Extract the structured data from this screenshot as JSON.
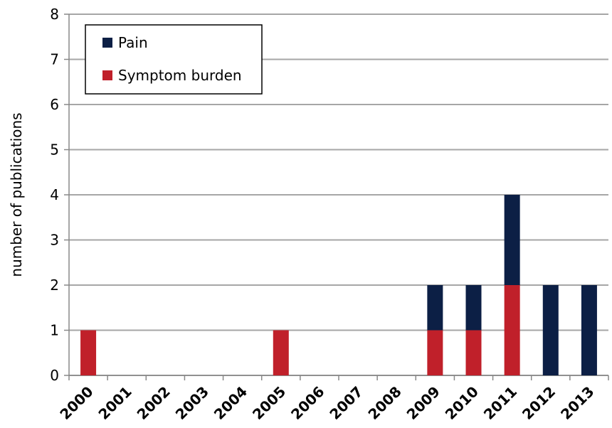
{
  "chart_data": {
    "type": "stacked_bar",
    "y_label": "number of publications",
    "categories": [
      "2000",
      "2001",
      "2002",
      "2003",
      "2004",
      "2005",
      "2006",
      "2007",
      "2008",
      "2009",
      "2010",
      "2011",
      "2012",
      "2013"
    ],
    "series": [
      {
        "name": "Symptom burden",
        "color": "#c0202a",
        "values": [
          1,
          0,
          0,
          0,
          0,
          1,
          0,
          0,
          0,
          1,
          1,
          2,
          0,
          0
        ]
      },
      {
        "name": "Pain",
        "color": "#0c1f45",
        "values": [
          0,
          0,
          0,
          0,
          0,
          0,
          0,
          0,
          0,
          1,
          1,
          2,
          2,
          2
        ]
      }
    ],
    "ylim": [
      0,
      8
    ],
    "yticks": [
      0,
      1,
      2,
      3,
      4,
      5,
      6,
      7,
      8
    ],
    "grid": true,
    "legend": "top-left"
  }
}
